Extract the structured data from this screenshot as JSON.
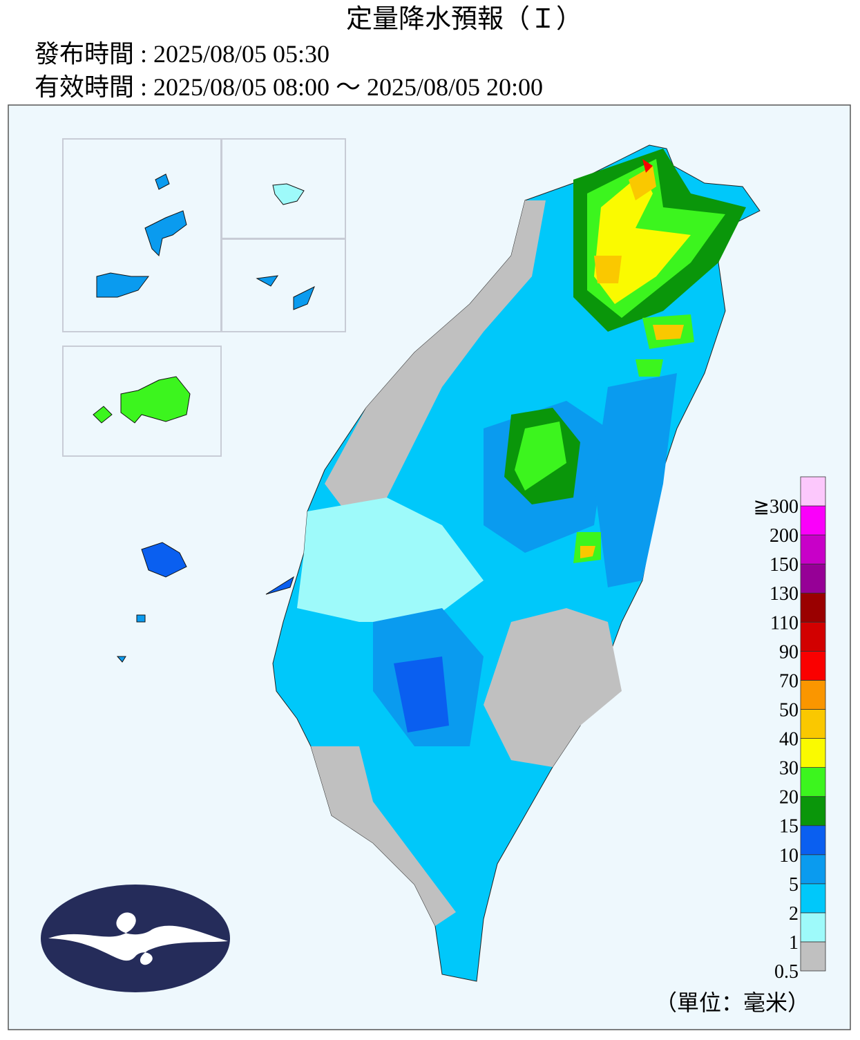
{
  "header": {
    "title": "定量降水預報（Ｉ）",
    "issued": "發布時間 : 2025/08/05 05:30",
    "valid": "有效時間 : 2025/08/05 08:00 ～ 2025/08/05 20:00"
  },
  "legend": {
    "unit": "（單位：毫米）",
    "levels": [
      {
        "label": "0.5",
        "color": "#c0c0c0"
      },
      {
        "label": "1",
        "color": "#9efafa"
      },
      {
        "label": "2",
        "color": "#00c8fa"
      },
      {
        "label": "5",
        "color": "#0a9bef"
      },
      {
        "label": "10",
        "color": "#0a5ff0"
      },
      {
        "label": "15",
        "color": "#0a960a"
      },
      {
        "label": "20",
        "color": "#3cf51e"
      },
      {
        "label": "30",
        "color": "#fafa00"
      },
      {
        "label": "40",
        "color": "#fac800"
      },
      {
        "label": "50",
        "color": "#fa9600"
      },
      {
        "label": "70",
        "color": "#fa0000"
      },
      {
        "label": "90",
        "color": "#d20000"
      },
      {
        "label": "110",
        "color": "#9a0000"
      },
      {
        "label": "130",
        "color": "#960096"
      },
      {
        "label": "150",
        "color": "#c800c8"
      },
      {
        "label": "200",
        "color": "#fa00fa"
      },
      {
        "label": "≧300",
        "color": "#fcc8fc"
      }
    ]
  }
}
